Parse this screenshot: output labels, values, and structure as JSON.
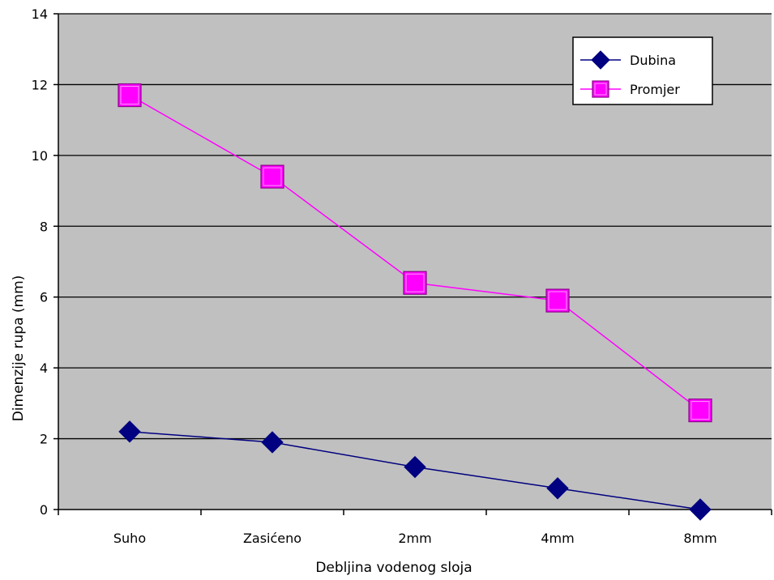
{
  "chart_data": {
    "type": "line",
    "title": "",
    "xlabel": "Debljina vodenog sloja",
    "ylabel": "Dimenzije rupa (mm)",
    "categories": [
      "Suho",
      "Zasićeno",
      "2mm",
      "4mm",
      "8mm"
    ],
    "ylim": [
      0,
      14
    ],
    "yticks": [
      0,
      2,
      4,
      6,
      8,
      10,
      12,
      14
    ],
    "grid": true,
    "legend_position": "top-right",
    "series": [
      {
        "name": "Dubina",
        "values": [
          2.2,
          1.9,
          1.2,
          0.6,
          0.0
        ],
        "color": "#000080",
        "marker": "diamond"
      },
      {
        "name": "Promjer",
        "values": [
          11.7,
          9.4,
          6.4,
          5.9,
          2.8
        ],
        "color": "#ff00ff",
        "marker": "square"
      }
    ],
    "plot_background": "#c0c0c0"
  }
}
